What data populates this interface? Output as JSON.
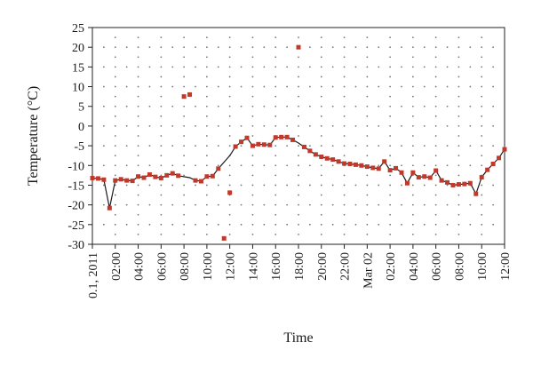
{
  "chart_data": {
    "type": "scatter",
    "xlabel": "Time",
    "ylabel": "Temperature (°C)",
    "ylim": [
      -30,
      25
    ],
    "yticks": [
      25,
      20,
      15,
      10,
      5,
      0,
      -5,
      -10,
      -15,
      -20,
      -25,
      -30
    ],
    "grid": "dotted",
    "xlim_hours": [
      0,
      36
    ],
    "xticks": [
      {
        "h": 0,
        "label": "0.1, 2011"
      },
      {
        "h": 2,
        "label": "02:00"
      },
      {
        "h": 4,
        "label": "04:00"
      },
      {
        "h": 6,
        "label": "06:00"
      },
      {
        "h": 8,
        "label": "08:00"
      },
      {
        "h": 10,
        "label": "10:00"
      },
      {
        "h": 12,
        "label": "12:00"
      },
      {
        "h": 14,
        "label": "14:00"
      },
      {
        "h": 16,
        "label": "16:00"
      },
      {
        "h": 18,
        "label": "18:00"
      },
      {
        "h": 20,
        "label": "20:00"
      },
      {
        "h": 22,
        "label": "22:00"
      },
      {
        "h": 24,
        "label": "Mar 02"
      },
      {
        "h": 26,
        "label": "02:00"
      },
      {
        "h": 28,
        "label": "04:00"
      },
      {
        "h": 30,
        "label": "06:00"
      },
      {
        "h": 32,
        "label": "08:00"
      },
      {
        "h": 34,
        "label": "10:00"
      },
      {
        "h": 36,
        "label": "12:00"
      }
    ],
    "series": [
      {
        "kind": "line",
        "color": "#1a1a1a",
        "points": [
          [
            0.0,
            -13.2
          ],
          [
            0.5,
            -13.3
          ],
          [
            1.0,
            -13.6
          ],
          [
            1.5,
            -20.8
          ],
          [
            2.0,
            -13.8
          ],
          [
            2.5,
            -13.5
          ],
          [
            3.0,
            -13.8
          ],
          [
            3.5,
            -13.9
          ],
          [
            4.0,
            -12.8
          ],
          [
            4.5,
            -13.1
          ],
          [
            5.0,
            -12.3
          ],
          [
            5.5,
            -12.9
          ],
          [
            6.0,
            -13.2
          ],
          [
            6.5,
            -12.5
          ],
          [
            7.0,
            -12.0
          ],
          [
            7.5,
            -12.6
          ],
          [
            8.5,
            -13.1
          ],
          [
            9.0,
            -13.8
          ],
          [
            9.5,
            -14.0
          ],
          [
            10.0,
            -12.8
          ],
          [
            10.5,
            -12.7
          ],
          [
            11.0,
            -10.8
          ],
          [
            12.0,
            -7.5
          ],
          [
            12.5,
            -5.2
          ],
          [
            13.0,
            -4.0
          ],
          [
            13.5,
            -3.0
          ],
          [
            14.0,
            -5.0
          ],
          [
            14.5,
            -4.6
          ],
          [
            15.0,
            -4.7
          ],
          [
            15.5,
            -4.8
          ],
          [
            16.0,
            -2.9
          ],
          [
            16.5,
            -2.8
          ],
          [
            17.0,
            -2.8
          ],
          [
            17.5,
            -3.5
          ],
          [
            18.0,
            -4.3
          ],
          [
            18.5,
            -5.3
          ],
          [
            19.0,
            -6.3
          ],
          [
            19.5,
            -7.2
          ],
          [
            20.0,
            -7.8
          ],
          [
            20.5,
            -8.2
          ],
          [
            21.0,
            -8.5
          ],
          [
            21.5,
            -9.0
          ],
          [
            22.0,
            -9.5
          ],
          [
            22.5,
            -9.6
          ],
          [
            23.0,
            -9.8
          ],
          [
            23.5,
            -10.0
          ],
          [
            24.0,
            -10.3
          ],
          [
            24.5,
            -10.6
          ],
          [
            25.0,
            -10.8
          ],
          [
            25.5,
            -9.0
          ],
          [
            26.0,
            -11.2
          ],
          [
            26.5,
            -10.7
          ],
          [
            27.0,
            -11.8
          ],
          [
            27.5,
            -14.5
          ],
          [
            28.0,
            -11.8
          ],
          [
            28.5,
            -13.0
          ],
          [
            29.0,
            -12.8
          ],
          [
            29.5,
            -13.1
          ],
          [
            30.0,
            -11.3
          ],
          [
            30.5,
            -13.8
          ],
          [
            31.0,
            -14.3
          ],
          [
            31.5,
            -15.0
          ],
          [
            32.0,
            -14.8
          ],
          [
            32.5,
            -14.7
          ],
          [
            33.0,
            -14.5
          ],
          [
            33.5,
            -17.2
          ],
          [
            34.0,
            -13.0
          ],
          [
            34.5,
            -11.1
          ],
          [
            35.0,
            -9.6
          ],
          [
            35.5,
            -8.1
          ],
          [
            36.0,
            -5.9
          ]
        ]
      },
      {
        "kind": "markers",
        "color": "#c0392b",
        "points": [
          [
            0.0,
            -13.2
          ],
          [
            0.5,
            -13.3
          ],
          [
            1.0,
            -13.6
          ],
          [
            1.5,
            -20.8
          ],
          [
            2.0,
            -13.8
          ],
          [
            2.5,
            -13.5
          ],
          [
            3.0,
            -13.8
          ],
          [
            3.5,
            -13.9
          ],
          [
            4.0,
            -12.8
          ],
          [
            4.5,
            -13.1
          ],
          [
            5.0,
            -12.3
          ],
          [
            5.5,
            -12.9
          ],
          [
            6.0,
            -13.2
          ],
          [
            6.5,
            -12.5
          ],
          [
            7.0,
            -12.0
          ],
          [
            7.5,
            -12.6
          ],
          [
            8.0,
            7.5
          ],
          [
            8.5,
            8.0
          ],
          [
            9.0,
            -13.8
          ],
          [
            9.5,
            -14.0
          ],
          [
            10.0,
            -12.8
          ],
          [
            10.5,
            -12.7
          ],
          [
            11.0,
            -10.8
          ],
          [
            11.5,
            -28.5
          ],
          [
            12.0,
            -16.9
          ],
          [
            12.5,
            -5.2
          ],
          [
            13.0,
            -4.0
          ],
          [
            13.5,
            -3.0
          ],
          [
            14.0,
            -5.0
          ],
          [
            14.5,
            -4.6
          ],
          [
            15.0,
            -4.7
          ],
          [
            15.5,
            -4.8
          ],
          [
            16.0,
            -2.9
          ],
          [
            16.5,
            -2.8
          ],
          [
            17.0,
            -2.8
          ],
          [
            17.5,
            -3.5
          ],
          [
            18.0,
            20.0
          ],
          [
            18.5,
            -5.3
          ],
          [
            19.0,
            -6.3
          ],
          [
            19.5,
            -7.2
          ],
          [
            20.0,
            -7.8
          ],
          [
            20.5,
            -8.2
          ],
          [
            21.0,
            -8.5
          ],
          [
            21.5,
            -9.0
          ],
          [
            22.0,
            -9.5
          ],
          [
            22.5,
            -9.6
          ],
          [
            23.0,
            -9.8
          ],
          [
            23.5,
            -10.0
          ],
          [
            24.0,
            -10.3
          ],
          [
            24.5,
            -10.6
          ],
          [
            25.0,
            -10.8
          ],
          [
            25.5,
            -9.0
          ],
          [
            26.0,
            -11.2
          ],
          [
            26.5,
            -10.7
          ],
          [
            27.0,
            -11.8
          ],
          [
            27.5,
            -14.5
          ],
          [
            28.0,
            -11.8
          ],
          [
            28.5,
            -13.0
          ],
          [
            29.0,
            -12.8
          ],
          [
            29.5,
            -13.1
          ],
          [
            30.0,
            -11.3
          ],
          [
            30.5,
            -13.8
          ],
          [
            31.0,
            -14.3
          ],
          [
            31.5,
            -15.0
          ],
          [
            32.0,
            -14.8
          ],
          [
            32.5,
            -14.7
          ],
          [
            33.0,
            -14.5
          ],
          [
            33.5,
            -17.2
          ],
          [
            34.0,
            -13.0
          ],
          [
            34.5,
            -11.1
          ],
          [
            35.0,
            -9.6
          ],
          [
            35.5,
            -8.1
          ],
          [
            36.0,
            -5.9
          ]
        ]
      }
    ]
  }
}
